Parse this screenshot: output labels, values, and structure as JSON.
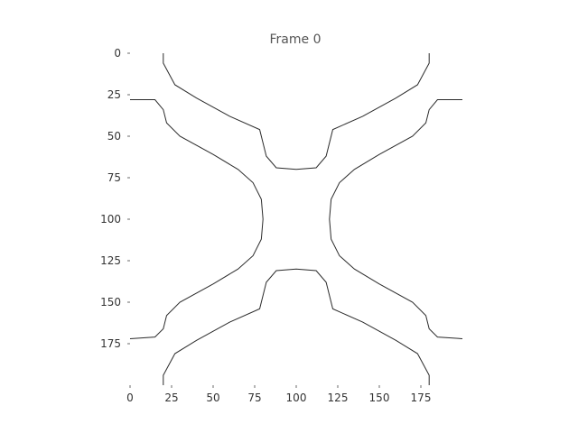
{
  "chart_data": {
    "type": "line",
    "title": "Frame 0",
    "xlabel": "",
    "ylabel": "",
    "xlim": [
      0,
      200
    ],
    "ylim": [
      200,
      0
    ],
    "x_ticks": [
      0,
      25,
      50,
      75,
      100,
      125,
      150,
      175
    ],
    "y_ticks": [
      0,
      25,
      50,
      75,
      100,
      125,
      150,
      175
    ],
    "grid": false,
    "frame": false,
    "line_color": "#2b2b2b",
    "series": [
      {
        "points": [
          [
            20,
            0
          ],
          [
            20,
            6
          ],
          [
            27,
            19
          ],
          [
            40,
            27
          ],
          [
            60,
            38
          ],
          [
            78,
            46
          ],
          [
            82,
            62
          ],
          [
            88,
            69
          ],
          [
            100,
            70
          ],
          [
            112,
            69
          ],
          [
            118,
            62
          ],
          [
            122,
            46
          ],
          [
            140,
            38
          ],
          [
            160,
            27
          ],
          [
            173,
            19
          ],
          [
            180,
            6
          ],
          [
            180,
            0
          ]
        ]
      },
      {
        "points": [
          [
            0,
            28
          ],
          [
            15,
            28
          ],
          [
            20,
            34
          ],
          [
            22,
            42
          ],
          [
            30,
            50
          ],
          [
            50,
            61
          ],
          [
            65,
            70
          ],
          [
            74,
            78
          ],
          [
            79,
            88
          ],
          [
            80,
            100
          ],
          [
            79,
            112
          ],
          [
            74,
            122
          ],
          [
            65,
            130
          ],
          [
            50,
            139
          ],
          [
            30,
            150
          ],
          [
            22,
            158
          ],
          [
            20,
            166
          ],
          [
            15,
            171
          ],
          [
            0,
            172
          ]
        ]
      },
      {
        "points": [
          [
            200,
            28
          ],
          [
            185,
            28
          ],
          [
            180,
            34
          ],
          [
            178,
            42
          ],
          [
            170,
            50
          ],
          [
            150,
            61
          ],
          [
            135,
            70
          ],
          [
            126,
            78
          ],
          [
            121,
            88
          ],
          [
            120,
            100
          ],
          [
            121,
            112
          ],
          [
            126,
            122
          ],
          [
            135,
            130
          ],
          [
            150,
            139
          ],
          [
            170,
            150
          ],
          [
            178,
            158
          ],
          [
            180,
            166
          ],
          [
            185,
            171
          ],
          [
            200,
            172
          ]
        ]
      },
      {
        "points": [
          [
            20,
            200
          ],
          [
            20,
            194
          ],
          [
            27,
            181
          ],
          [
            40,
            173
          ],
          [
            60,
            162
          ],
          [
            78,
            154
          ],
          [
            82,
            138
          ],
          [
            88,
            131
          ],
          [
            100,
            130
          ],
          [
            112,
            131
          ],
          [
            118,
            138
          ],
          [
            122,
            154
          ],
          [
            140,
            162
          ],
          [
            160,
            173
          ],
          [
            173,
            181
          ],
          [
            180,
            194
          ],
          [
            180,
            200
          ]
        ]
      }
    ]
  }
}
